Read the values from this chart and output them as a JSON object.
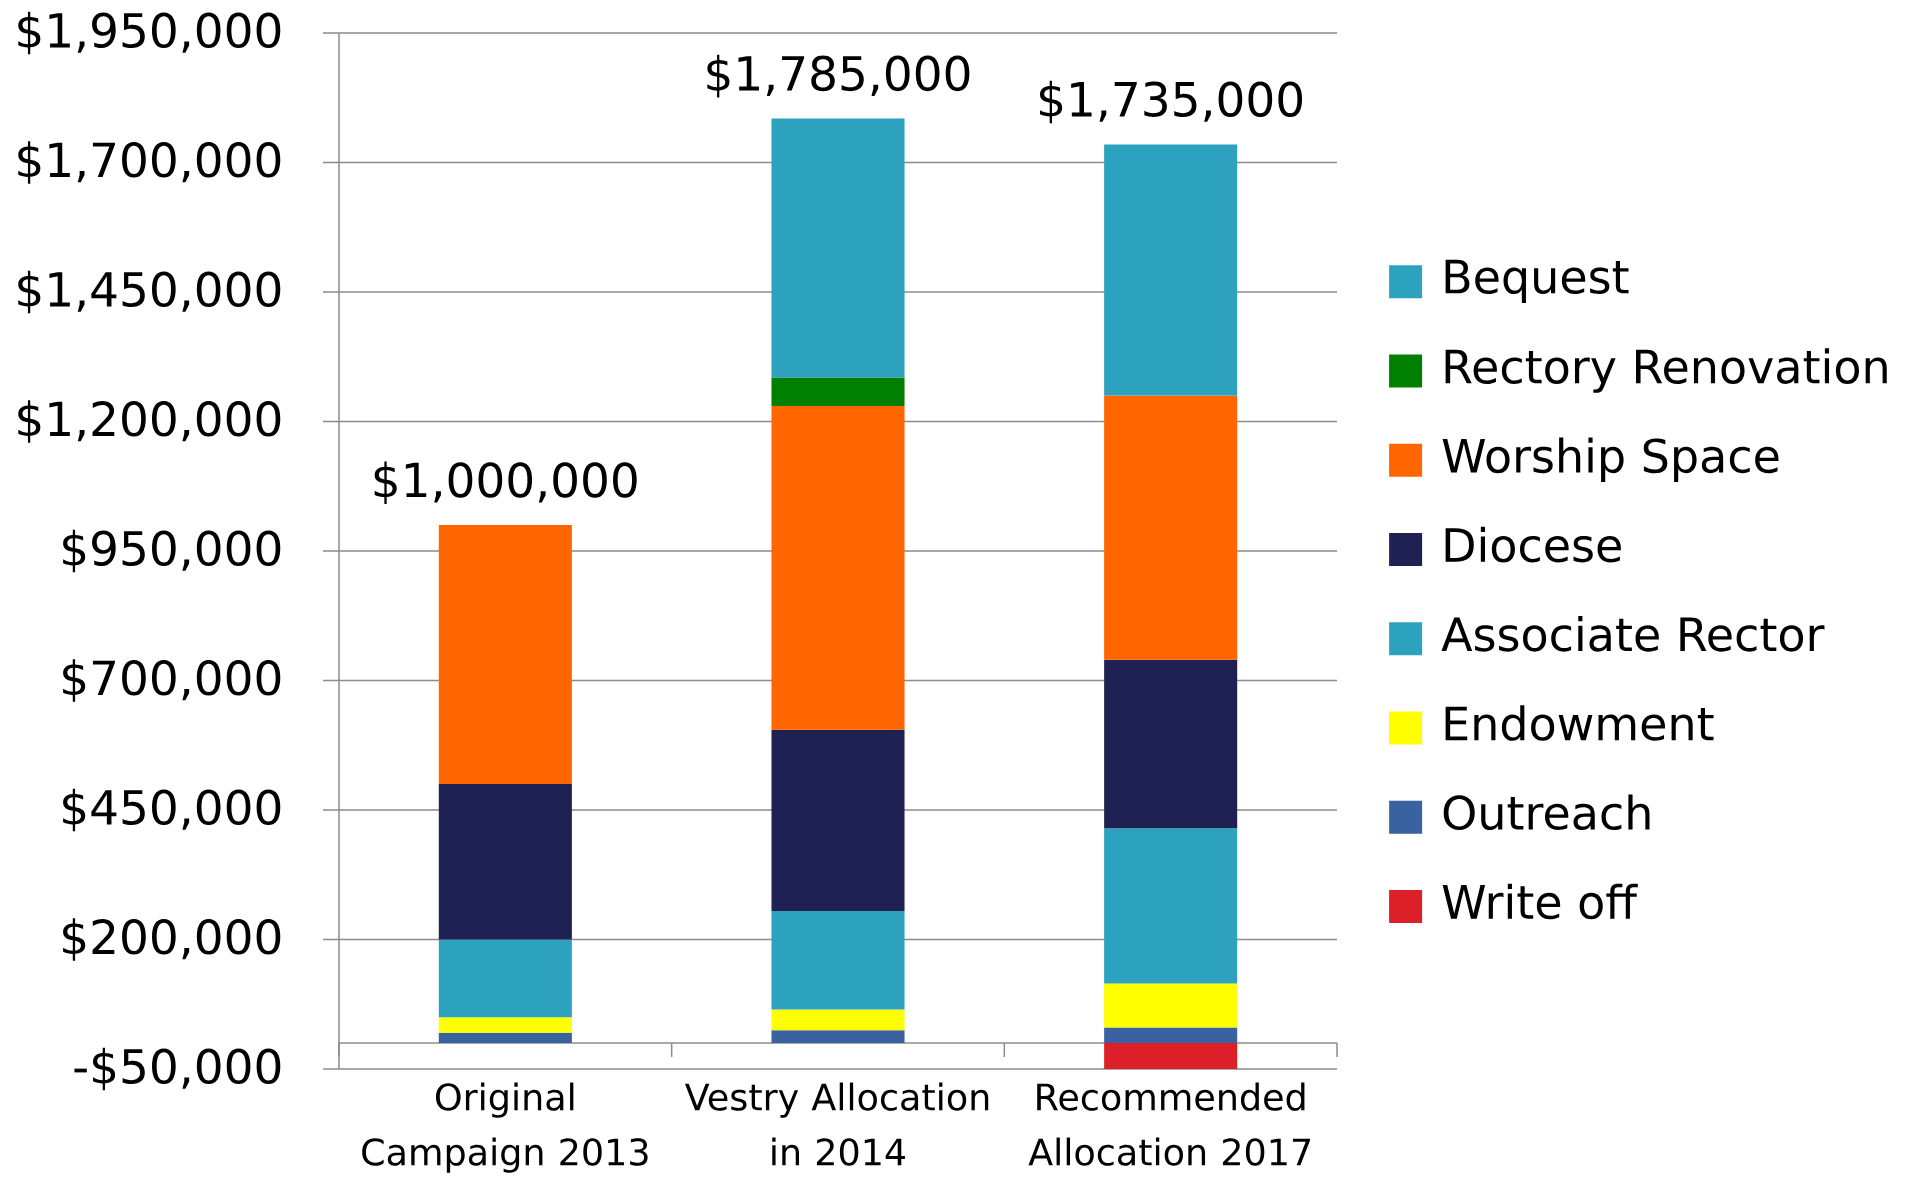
{
  "chart_data": {
    "type": "bar",
    "stacked": true,
    "categories": [
      "Original Campaign 2013",
      "Vestry Allocation in 2014",
      "Recommended Allocation 2017"
    ],
    "series": [
      {
        "name": "Write off",
        "color": "#dc1f28",
        "values": [
          null,
          null,
          -50000
        ]
      },
      {
        "name": "Outreach",
        "color": "#3a62a0",
        "values": [
          20000,
          25000,
          30000
        ]
      },
      {
        "name": "Endowment",
        "color": "#ffff00",
        "values": [
          30000,
          40000,
          85000
        ]
      },
      {
        "name": "Associate Rector",
        "color": "#2ca2bf",
        "values": [
          150000,
          190000,
          300000
        ]
      },
      {
        "name": "Diocese",
        "color": "#1f2152",
        "values": [
          300000,
          350000,
          325000
        ]
      },
      {
        "name": "Worship Space",
        "color": "#ff6600",
        "values": [
          500000,
          625000,
          510000
        ]
      },
      {
        "name": "Rectory Renovation",
        "color": "#007f00",
        "values": [
          null,
          55000,
          null
        ]
      },
      {
        "name": "Bequest",
        "color": "#2ca2bf",
        "values": [
          null,
          500000,
          485000
        ]
      }
    ],
    "ylim": [
      -50000,
      1950000
    ],
    "yticks": [
      {
        "value": -50000,
        "label": "-$50,000"
      },
      {
        "value": 200000,
        "label": "$200,000"
      },
      {
        "value": 450000,
        "label": "$450,000"
      },
      {
        "value": 700000,
        "label": "$700,000"
      },
      {
        "value": 950000,
        "label": "$950,000"
      },
      {
        "value": 1200000,
        "label": "$1,200,000"
      },
      {
        "value": 1450000,
        "label": "$1,450,000"
      },
      {
        "value": 1700000,
        "label": "$1,700,000"
      },
      {
        "value": 1950000,
        "label": "$1,950,000"
      }
    ],
    "grid": "y",
    "legend": "right",
    "annotations": [
      {
        "text": "$1,000,000",
        "x": "Original Campaign 2013",
        "y": 1000000
      },
      {
        "text": "$1,785,000",
        "x": "Vestry Allocation in 2014",
        "y": 1785000
      },
      {
        "text": "$1,735,000",
        "x": "Recommended Allocation 2017",
        "y": 1735000
      }
    ]
  }
}
